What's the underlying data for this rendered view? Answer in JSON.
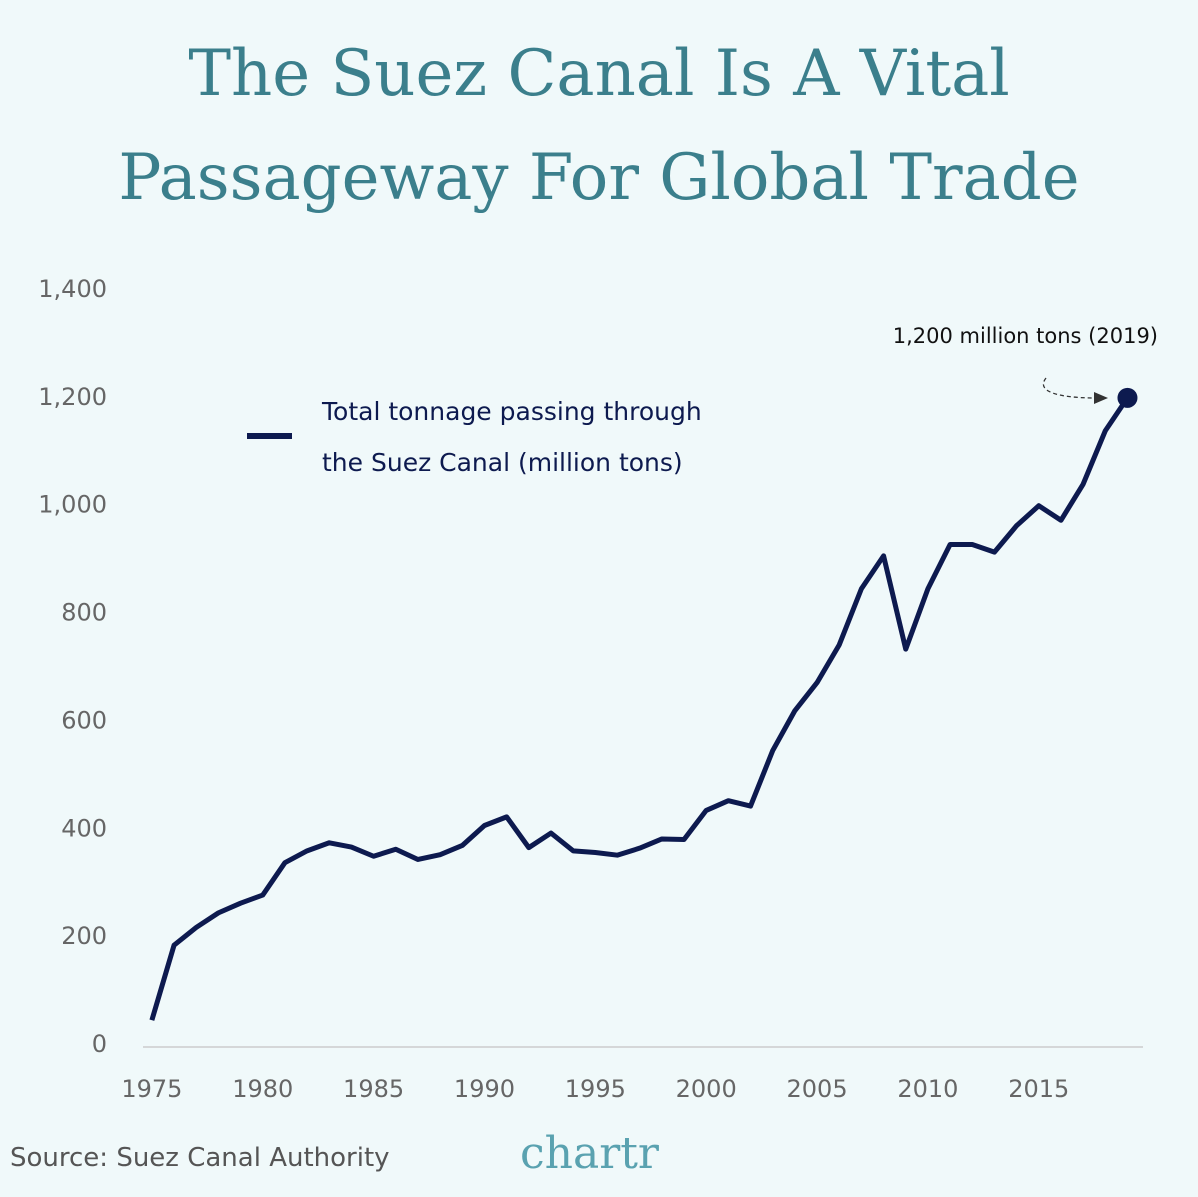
{
  "chart_data": {
    "type": "line",
    "title": "The Suez Canal Is A Vital Passageway For Global Trade",
    "x": [
      1975,
      1976,
      1977,
      1978,
      1979,
      1980,
      1981,
      1982,
      1983,
      1984,
      1985,
      1986,
      1987,
      1988,
      1989,
      1990,
      1991,
      1992,
      1993,
      1994,
      1995,
      1996,
      1997,
      1998,
      1999,
      2000,
      2001,
      2002,
      2003,
      2004,
      2005,
      2006,
      2007,
      2008,
      2009,
      2010,
      2011,
      2012,
      2013,
      2014,
      2015,
      2016,
      2017,
      2018,
      2019
    ],
    "series": [
      {
        "name": "Total tonnage passing through the Suez Canal (million tons)",
        "color": "#0d1a4f",
        "values": [
          46,
          185,
          218,
          245,
          263,
          278,
          338,
          360,
          375,
          367,
          350,
          363,
          344,
          353,
          370,
          407,
          423,
          366,
          393,
          360,
          357,
          352,
          365,
          382,
          381,
          435,
          453,
          443,
          546,
          620,
          672,
          742,
          846,
          907,
          734,
          846,
          928,
          928,
          914,
          963,
          1000,
          973,
          1040,
          1139,
          1200
        ]
      }
    ],
    "xlim": [
      1974.6,
      2019.7
    ],
    "xticks": [
      1975,
      1980,
      1985,
      1990,
      1995,
      2000,
      2005,
      2010,
      2015
    ],
    "ylim": [
      0,
      1400
    ],
    "yticks": [
      0,
      200,
      400,
      600,
      800,
      {
        "value": 1000,
        "label": "1,000"
      },
      {
        "value": 1200,
        "label": "1,200"
      },
      {
        "value": 1400,
        "label": "1,400"
      }
    ],
    "grid": false,
    "annotation": "1,200 million tons (2019)",
    "source": "Source: Suez Canal Authority",
    "brand": "chartr"
  }
}
